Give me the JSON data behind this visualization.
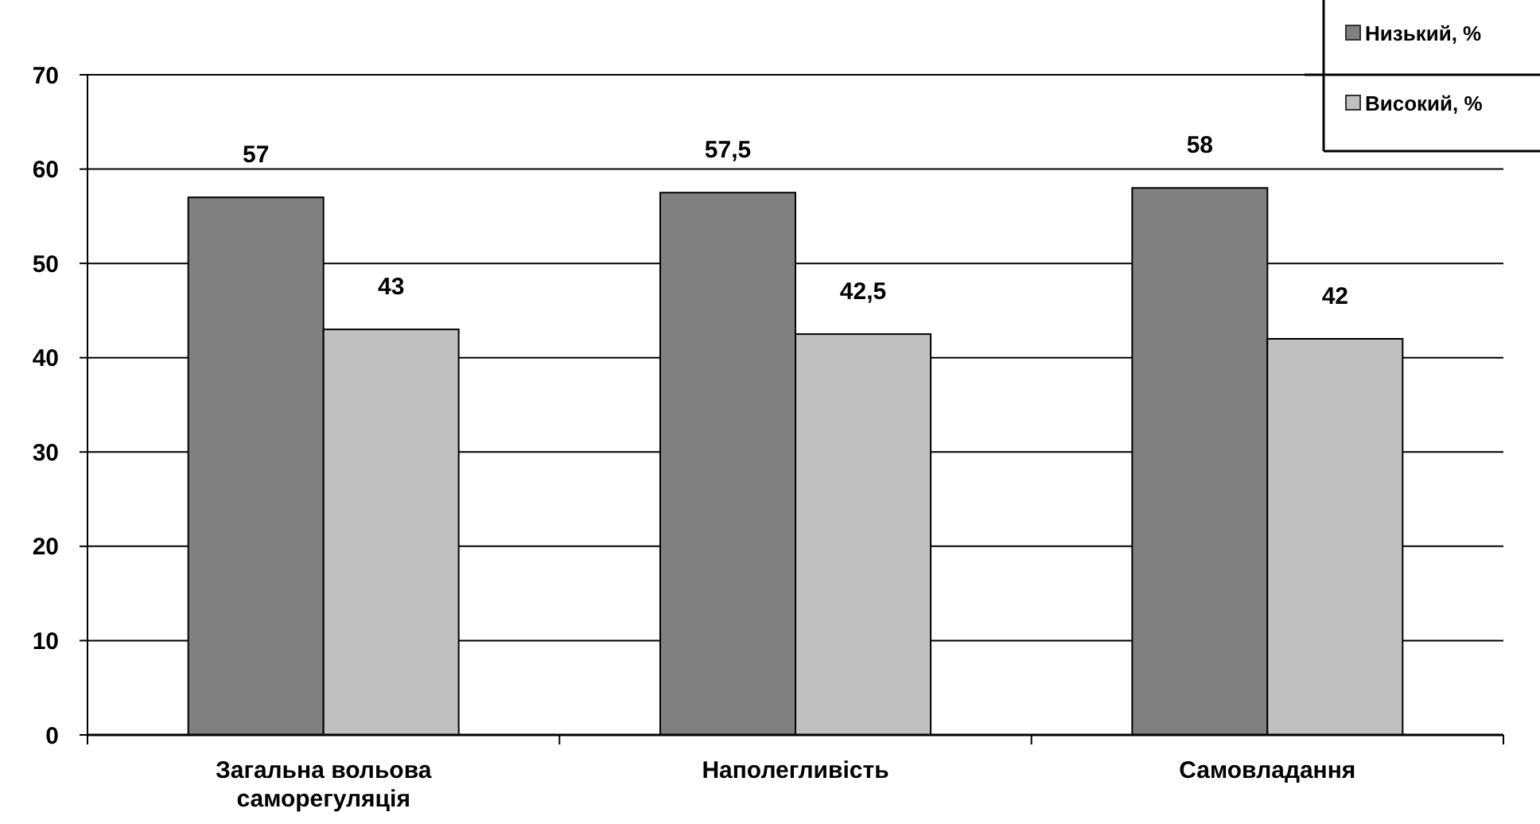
{
  "chart_data": {
    "type": "bar",
    "categories": [
      "Загальна вольова саморегуляція",
      "Наполегливість",
      "Самовладання"
    ],
    "series": [
      {
        "name": "Низький, %",
        "color": "#808080",
        "values": [
          57,
          57.5,
          58
        ],
        "value_labels": [
          "57",
          "57,5",
          "58"
        ]
      },
      {
        "name": "Високий, %",
        "color": "#c0c0c0",
        "values": [
          43,
          42.5,
          42
        ],
        "value_labels": [
          "43",
          "42,5",
          "42"
        ]
      }
    ],
    "ylim": [
      0,
      70
    ],
    "yticks": [
      0,
      10,
      20,
      30,
      40,
      50,
      60,
      70
    ],
    "grid": "y",
    "legend": "top right"
  }
}
